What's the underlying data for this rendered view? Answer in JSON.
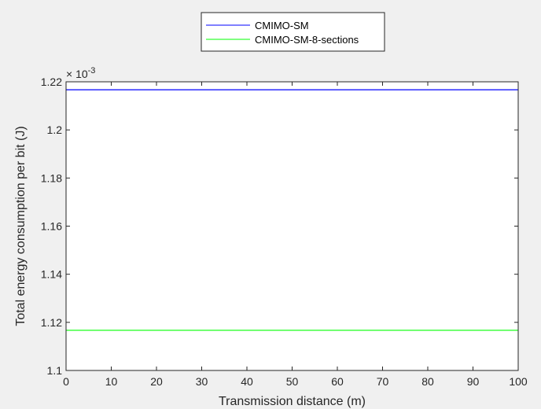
{
  "chart_data": {
    "type": "line",
    "xlabel": "Transmission distance (m)",
    "ylabel": "Total energy consumption per bit (J)",
    "y_exponent_label": "× 10",
    "y_exponent": "-3",
    "xlim": [
      0,
      100
    ],
    "ylim": [
      1.1,
      1.22
    ],
    "xticks": [
      0,
      10,
      20,
      30,
      40,
      50,
      60,
      70,
      80,
      90,
      100
    ],
    "yticks": [
      1.1,
      1.12,
      1.14,
      1.16,
      1.18,
      1.2,
      1.22
    ],
    "ytick_labels": [
      "1.1",
      "1.12",
      "1.14",
      "1.16",
      "1.18",
      "1.2",
      "1.22"
    ],
    "legend_position": "top-center",
    "grid": false,
    "series": [
      {
        "name": "CMIMO-SM",
        "color": "#0000ff",
        "x": [
          0,
          100
        ],
        "y": [
          1.2167,
          1.2167
        ]
      },
      {
        "name": "CMIMO-SM-8-sections",
        "color": "#00ff00",
        "x": [
          0,
          100
        ],
        "y": [
          1.1167,
          1.1167
        ]
      }
    ]
  }
}
